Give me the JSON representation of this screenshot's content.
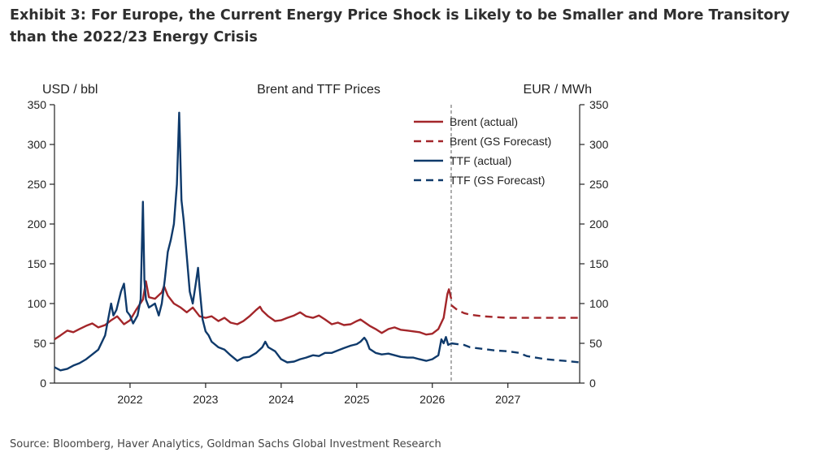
{
  "page": {
    "title": "Exhibit 3: For Europe, the Current Energy Price Shock is Likely to be Smaller and More Transitory than the 2022/23 Energy Crisis",
    "source": "Source: Bloomberg, Haver Analytics, Goldman Sachs Global Investment Research"
  },
  "chart_data": {
    "type": "line",
    "title": "Brent and TTF Prices",
    "ylabel_left": "USD / bbl",
    "ylabel_right": "EUR / MWh",
    "ylim_left": [
      0,
      350
    ],
    "ylim_right": [
      0,
      350
    ],
    "y_ticks": [
      "0",
      "50",
      "100",
      "150",
      "200",
      "250",
      "300",
      "350"
    ],
    "x_range": [
      2021.0,
      2027.95
    ],
    "x_ticks": [
      {
        "label": "2022",
        "x": 2022
      },
      {
        "label": "2023",
        "x": 2023
      },
      {
        "label": "2024",
        "x": 2024
      },
      {
        "label": "2025",
        "x": 2025
      },
      {
        "label": "2026",
        "x": 2026
      },
      {
        "label": "2027",
        "x": 2027
      }
    ],
    "forecast_start": 2026.25,
    "colors": {
      "brent": "#a3262a",
      "ttf": "#0f3a6b",
      "divider": "#777777",
      "axis": "#222222"
    },
    "legend": [
      {
        "label": "Brent (actual)",
        "series": "brent_actual"
      },
      {
        "label": "Brent (GS Forecast)",
        "series": "brent_forecast"
      },
      {
        "label": "TTF (actual)",
        "series": "ttf_actual"
      },
      {
        "label": "TTF (GS Forecast)",
        "series": "ttf_forecast"
      }
    ],
    "series": [
      {
        "name": "Brent (actual)",
        "key": "brent_actual",
        "axis": "left",
        "style": "solid",
        "color": "#a3262a",
        "points": [
          [
            2021.0,
            55
          ],
          [
            2021.08,
            60
          ],
          [
            2021.17,
            66
          ],
          [
            2021.25,
            64
          ],
          [
            2021.33,
            68
          ],
          [
            2021.42,
            72
          ],
          [
            2021.5,
            75
          ],
          [
            2021.58,
            70
          ],
          [
            2021.67,
            73
          ],
          [
            2021.75,
            79
          ],
          [
            2021.83,
            84
          ],
          [
            2021.92,
            74
          ],
          [
            2022.0,
            79
          ],
          [
            2022.08,
            92
          ],
          [
            2022.17,
            105
          ],
          [
            2022.21,
            128
          ],
          [
            2022.25,
            108
          ],
          [
            2022.33,
            106
          ],
          [
            2022.42,
            114
          ],
          [
            2022.45,
            122
          ],
          [
            2022.5,
            110
          ],
          [
            2022.58,
            100
          ],
          [
            2022.67,
            95
          ],
          [
            2022.75,
            89
          ],
          [
            2022.83,
            95
          ],
          [
            2022.92,
            84
          ],
          [
            2023.0,
            82
          ],
          [
            2023.08,
            84
          ],
          [
            2023.17,
            78
          ],
          [
            2023.25,
            82
          ],
          [
            2023.33,
            76
          ],
          [
            2023.42,
            74
          ],
          [
            2023.5,
            78
          ],
          [
            2023.58,
            84
          ],
          [
            2023.67,
            92
          ],
          [
            2023.72,
            96
          ],
          [
            2023.75,
            91
          ],
          [
            2023.83,
            84
          ],
          [
            2023.92,
            78
          ],
          [
            2024.0,
            79
          ],
          [
            2024.08,
            82
          ],
          [
            2024.17,
            85
          ],
          [
            2024.25,
            89
          ],
          [
            2024.33,
            84
          ],
          [
            2024.42,
            82
          ],
          [
            2024.5,
            85
          ],
          [
            2024.58,
            80
          ],
          [
            2024.67,
            74
          ],
          [
            2024.75,
            76
          ],
          [
            2024.83,
            73
          ],
          [
            2024.92,
            74
          ],
          [
            2025.0,
            78
          ],
          [
            2025.05,
            80
          ],
          [
            2025.17,
            72
          ],
          [
            2025.25,
            68
          ],
          [
            2025.33,
            63
          ],
          [
            2025.42,
            68
          ],
          [
            2025.5,
            70
          ],
          [
            2025.58,
            67
          ],
          [
            2025.67,
            66
          ],
          [
            2025.75,
            65
          ],
          [
            2025.83,
            64
          ],
          [
            2025.92,
            61
          ],
          [
            2026.0,
            62
          ],
          [
            2026.08,
            68
          ],
          [
            2026.15,
            82
          ],
          [
            2026.2,
            112
          ],
          [
            2026.22,
            118
          ],
          [
            2026.25,
            106
          ]
        ]
      },
      {
        "name": "Brent (GS Forecast)",
        "key": "brent_forecast",
        "axis": "left",
        "style": "dashed",
        "color": "#a3262a",
        "points": [
          [
            2026.25,
            98
          ],
          [
            2026.33,
            92
          ],
          [
            2026.42,
            88
          ],
          [
            2026.5,
            86
          ],
          [
            2026.67,
            84
          ],
          [
            2026.83,
            83
          ],
          [
            2027.0,
            82
          ],
          [
            2027.5,
            82
          ],
          [
            2027.95,
            82
          ]
        ]
      },
      {
        "name": "TTF (actual)",
        "key": "ttf_actual",
        "axis": "right",
        "style": "solid",
        "color": "#0f3a6b",
        "points": [
          [
            2021.0,
            20
          ],
          [
            2021.08,
            16
          ],
          [
            2021.17,
            18
          ],
          [
            2021.25,
            22
          ],
          [
            2021.33,
            25
          ],
          [
            2021.42,
            30
          ],
          [
            2021.5,
            36
          ],
          [
            2021.58,
            42
          ],
          [
            2021.67,
            60
          ],
          [
            2021.72,
            85
          ],
          [
            2021.75,
            100
          ],
          [
            2021.78,
            85
          ],
          [
            2021.82,
            92
          ],
          [
            2021.88,
            115
          ],
          [
            2021.92,
            125
          ],
          [
            2021.96,
            90
          ],
          [
            2022.0,
            85
          ],
          [
            2022.04,
            75
          ],
          [
            2022.1,
            85
          ],
          [
            2022.14,
            105
          ],
          [
            2022.17,
            228
          ],
          [
            2022.19,
            130
          ],
          [
            2022.21,
            105
          ],
          [
            2022.25,
            95
          ],
          [
            2022.33,
            100
          ],
          [
            2022.38,
            85
          ],
          [
            2022.42,
            100
          ],
          [
            2022.46,
            130
          ],
          [
            2022.5,
            165
          ],
          [
            2022.54,
            180
          ],
          [
            2022.58,
            200
          ],
          [
            2022.62,
            250
          ],
          [
            2022.65,
            340
          ],
          [
            2022.68,
            230
          ],
          [
            2022.71,
            205
          ],
          [
            2022.75,
            160
          ],
          [
            2022.79,
            115
          ],
          [
            2022.83,
            100
          ],
          [
            2022.87,
            125
          ],
          [
            2022.9,
            145
          ],
          [
            2022.92,
            120
          ],
          [
            2022.96,
            80
          ],
          [
            2023.0,
            65
          ],
          [
            2023.04,
            60
          ],
          [
            2023.08,
            52
          ],
          [
            2023.17,
            45
          ],
          [
            2023.25,
            42
          ],
          [
            2023.33,
            35
          ],
          [
            2023.42,
            28
          ],
          [
            2023.5,
            32
          ],
          [
            2023.58,
            33
          ],
          [
            2023.67,
            38
          ],
          [
            2023.75,
            45
          ],
          [
            2023.79,
            52
          ],
          [
            2023.83,
            45
          ],
          [
            2023.92,
            40
          ],
          [
            2024.0,
            30
          ],
          [
            2024.08,
            26
          ],
          [
            2024.17,
            27
          ],
          [
            2024.25,
            30
          ],
          [
            2024.33,
            32
          ],
          [
            2024.42,
            35
          ],
          [
            2024.5,
            34
          ],
          [
            2024.58,
            38
          ],
          [
            2024.67,
            38
          ],
          [
            2024.75,
            41
          ],
          [
            2024.83,
            44
          ],
          [
            2024.92,
            47
          ],
          [
            2025.0,
            49
          ],
          [
            2025.05,
            52
          ],
          [
            2025.1,
            57
          ],
          [
            2025.13,
            53
          ],
          [
            2025.17,
            43
          ],
          [
            2025.25,
            38
          ],
          [
            2025.33,
            36
          ],
          [
            2025.42,
            37
          ],
          [
            2025.5,
            35
          ],
          [
            2025.58,
            33
          ],
          [
            2025.67,
            32
          ],
          [
            2025.75,
            32
          ],
          [
            2025.83,
            30
          ],
          [
            2025.92,
            28
          ],
          [
            2026.0,
            30
          ],
          [
            2026.08,
            35
          ],
          [
            2026.12,
            55
          ],
          [
            2026.15,
            50
          ],
          [
            2026.18,
            58
          ],
          [
            2026.21,
            48
          ],
          [
            2026.25,
            50
          ]
        ]
      },
      {
        "name": "TTF (GS Forecast)",
        "key": "ttf_forecast",
        "axis": "right",
        "style": "dashed",
        "color": "#0f3a6b",
        "points": [
          [
            2026.25,
            50
          ],
          [
            2026.42,
            48
          ],
          [
            2026.5,
            45
          ],
          [
            2026.67,
            43
          ],
          [
            2026.83,
            41
          ],
          [
            2027.0,
            40
          ],
          [
            2027.15,
            38
          ],
          [
            2027.25,
            34
          ],
          [
            2027.5,
            30
          ],
          [
            2027.75,
            28
          ],
          [
            2027.95,
            26
          ]
        ]
      }
    ]
  }
}
